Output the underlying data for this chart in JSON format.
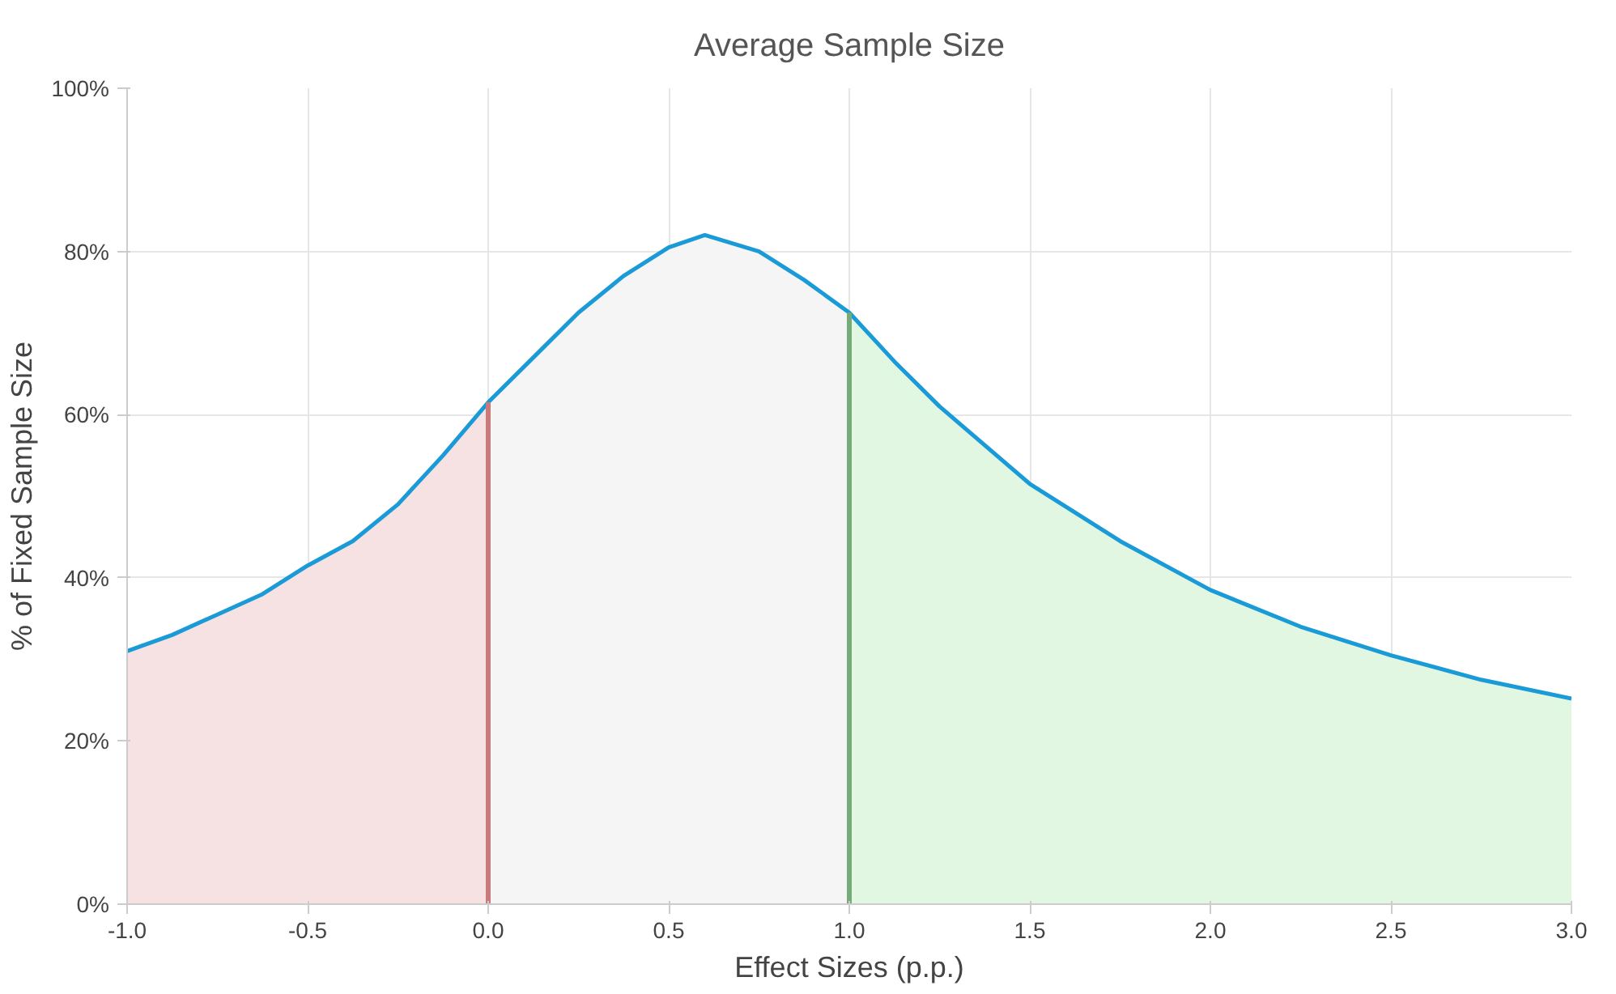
{
  "chart_data": {
    "type": "line",
    "title": "Average Sample Size",
    "xlabel": "Effect Sizes (p.p.)",
    "ylabel": "% of Fixed Sample Size",
    "xlim": [
      -1,
      3
    ],
    "xticks": [
      {
        "value": -1,
        "label": "-1.0"
      },
      {
        "value": -0.5,
        "label": "-0.5"
      },
      {
        "value": 0,
        "label": "0.0"
      },
      {
        "value": 0.5,
        "label": "0.5"
      },
      {
        "value": 1,
        "label": "1.0"
      },
      {
        "value": 1.5,
        "label": "1.5"
      },
      {
        "value": 2,
        "label": "2.0"
      },
      {
        "value": 2.5,
        "label": "2.5"
      },
      {
        "value": 3,
        "label": "3.0"
      }
    ],
    "ylim": [
      0,
      100
    ],
    "yticks": [
      {
        "value": 0,
        "label": "0%"
      },
      {
        "value": 20,
        "label": "20%"
      },
      {
        "value": 40,
        "label": "40%"
      },
      {
        "value": 60,
        "label": "60%"
      },
      {
        "value": 80,
        "label": "80%"
      },
      {
        "value": 100,
        "label": "100%"
      }
    ],
    "grid": true,
    "marker": "none",
    "line_style": "solid",
    "series": [
      {
        "type": "area",
        "color": "#f6e2e2",
        "x": [
          -1,
          -0.875,
          -0.75,
          -0.625,
          -0.5,
          -0.375,
          -0.25,
          -0.125,
          0
        ],
        "values": [
          31,
          33,
          35.5,
          38,
          41.5,
          44.5,
          49,
          55,
          61.5
        ]
      },
      {
        "type": "area",
        "color": "#f5f5f5",
        "x": [
          0,
          0.125,
          0.25,
          0.375,
          0.5,
          0.6,
          0.75,
          0.875,
          1
        ],
        "values": [
          61.5,
          67,
          72.5,
          77,
          80.5,
          82,
          80,
          76.5,
          72.5
        ]
      },
      {
        "type": "area",
        "color": "#e2f7e2",
        "x": [
          1,
          1.125,
          1.25,
          1.5,
          1.75,
          2,
          2.25,
          2.5,
          2.75,
          3
        ],
        "values": [
          72.5,
          66.5,
          61,
          51.5,
          44.5,
          38.5,
          34,
          30.5,
          27.5,
          25.2
        ]
      },
      {
        "color": "#1a9bd7",
        "x": [
          -1,
          -0.875,
          -0.75,
          -0.625,
          -0.5,
          -0.375,
          -0.25,
          -0.125,
          0,
          0.125,
          0.25,
          0.375,
          0.5,
          0.6,
          0.75,
          0.875,
          1,
          1.125,
          1.25,
          1.5,
          1.75,
          2,
          2.25,
          2.5,
          2.75,
          3
        ],
        "values": [
          31,
          33,
          35.5,
          38,
          41.5,
          44.5,
          49,
          55,
          61.5,
          67,
          72.5,
          77,
          80.5,
          82,
          80,
          76.5,
          72.5,
          66.5,
          61,
          51.5,
          44.5,
          38.5,
          34,
          30.5,
          27.5,
          25.2
        ]
      }
    ],
    "ref_lines": [
      {
        "axis": "x",
        "value": 0,
        "color": "#c97b7b"
      },
      {
        "axis": "x",
        "value": 1,
        "color": "#78a978"
      }
    ]
  }
}
